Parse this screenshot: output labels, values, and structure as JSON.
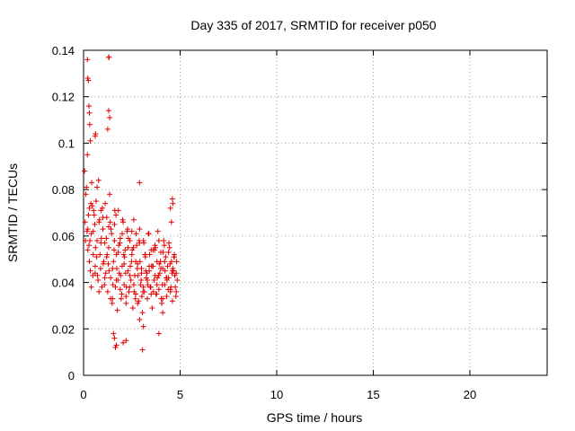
{
  "chart_data": {
    "type": "scatter",
    "title": "Day 335 of 2017, SRMTID for receiver p050",
    "xlabel": "GPS time / hours",
    "ylabel": "SRMTID / TECUs",
    "xlim": [
      0,
      24
    ],
    "ylim": [
      0,
      0.14
    ],
    "xticks": [
      0,
      5,
      10,
      15,
      20
    ],
    "xtick_labels": [
      "0",
      "5",
      "10",
      "15",
      "20"
    ],
    "yticks": [
      0,
      0.02,
      0.04,
      0.06,
      0.08,
      0.1,
      0.12,
      0.14
    ],
    "ytick_labels": [
      "0",
      "0.02",
      "0.04",
      "0.06",
      "0.08",
      "0.1",
      "0.12",
      "0.14"
    ],
    "grid": true,
    "marker": "+",
    "color": "#e00000",
    "series": [
      {
        "name": "SRMTID",
        "x": [
          0.08,
          0.12,
          0.2,
          0.22,
          0.3,
          0.35,
          0.4,
          0.42,
          0.5,
          0.55,
          0.6,
          0.65,
          0.7,
          0.75,
          0.8,
          0.85,
          0.9,
          0.95,
          1.0,
          1.05,
          1.1,
          1.15,
          1.2,
          1.25,
          1.3,
          1.35,
          1.4,
          1.45,
          1.5,
          1.55,
          1.6,
          1.65,
          1.7,
          1.75,
          1.8,
          1.85,
          1.9,
          1.95,
          2.0,
          2.05,
          2.1,
          2.15,
          2.2,
          2.25,
          2.3,
          2.35,
          2.4,
          2.45,
          2.5,
          2.55,
          2.6,
          2.65,
          2.7,
          2.75,
          2.8,
          2.85,
          2.9,
          2.95,
          3.0,
          3.05,
          3.1,
          3.15,
          3.2,
          3.25,
          3.3,
          3.35,
          3.4,
          3.45,
          3.5,
          3.55,
          3.6,
          3.65,
          3.7,
          3.75,
          3.8,
          3.85,
          3.9,
          3.95,
          4.0,
          4.05,
          4.1,
          4.15,
          4.2,
          4.25,
          4.3,
          4.35,
          4.4,
          4.45,
          4.5,
          4.55,
          4.6,
          4.65,
          4.7,
          4.75,
          4.8,
          4.85,
          0.1,
          0.15,
          0.25,
          0.3,
          0.4,
          0.45,
          0.5,
          0.6,
          0.7,
          0.8,
          0.9,
          1.0,
          1.1,
          1.2,
          1.3,
          1.4,
          1.5,
          1.6,
          1.7,
          1.8,
          1.9,
          2.0,
          2.1,
          2.2,
          2.3,
          2.4,
          2.5,
          2.6,
          2.7,
          2.8,
          2.9,
          3.0,
          3.1,
          3.2,
          3.3,
          3.4,
          3.5,
          3.6,
          3.7,
          3.8,
          3.9,
          4.0,
          4.1,
          4.2,
          4.3,
          4.4,
          4.5,
          4.6,
          4.7,
          4.8,
          0.05,
          0.18,
          0.28,
          0.38,
          0.48,
          0.58,
          0.68,
          0.78,
          0.88,
          0.98,
          1.08,
          1.18,
          1.28,
          1.38,
          1.48,
          1.58,
          1.68,
          1.78,
          1.88,
          1.98,
          2.08,
          2.18,
          2.28,
          2.38,
          2.48,
          2.58,
          2.68,
          2.78,
          2.88,
          2.98,
          3.08,
          3.18,
          3.28,
          3.38,
          3.48,
          3.58,
          3.68,
          3.78,
          3.88,
          3.98,
          4.08,
          4.18,
          4.28,
          4.38,
          4.48,
          4.58,
          4.68,
          4.78,
          0.22,
          0.33,
          0.52,
          0.62,
          0.72,
          0.82,
          0.92,
          1.02,
          1.12,
          1.22,
          1.32,
          1.42,
          1.52,
          1.62,
          1.72,
          1.82,
          1.92,
          2.02,
          2.12,
          2.22,
          2.32,
          2.42,
          2.52,
          2.62,
          2.72,
          2.82,
          2.92,
          3.02,
          3.12,
          3.22,
          3.32,
          3.42,
          3.52,
          3.62,
          3.72,
          3.82,
          3.92,
          4.02,
          4.12,
          4.22,
          4.32,
          4.42,
          4.52,
          4.62,
          4.72,
          4.82,
          1.3,
          1.32,
          0.2,
          0.22,
          0.25,
          0.28,
          0.3,
          0.32,
          0.35,
          0.6,
          0.62,
          1.3,
          1.35,
          1.25,
          2.9,
          3.05,
          3.1,
          2.2,
          1.6,
          1.65,
          1.7,
          1.55,
          2.05,
          2.9,
          3.9,
          4.1,
          4.6,
          4.62,
          4.5,
          4.55
        ],
        "y": [
          0.066,
          0.078,
          0.095,
          0.054,
          0.072,
          0.045,
          0.061,
          0.083,
          0.052,
          0.069,
          0.047,
          0.075,
          0.058,
          0.041,
          0.066,
          0.052,
          0.071,
          0.038,
          0.063,
          0.049,
          0.057,
          0.044,
          0.068,
          0.036,
          0.055,
          0.078,
          0.042,
          0.061,
          0.033,
          0.049,
          0.065,
          0.038,
          0.052,
          0.028,
          0.071,
          0.044,
          0.059,
          0.033,
          0.047,
          0.066,
          0.039,
          0.054,
          0.031,
          0.062,
          0.045,
          0.036,
          0.058,
          0.041,
          0.052,
          0.029,
          0.067,
          0.043,
          0.035,
          0.056,
          0.048,
          0.032,
          0.063,
          0.039,
          0.046,
          0.027,
          0.058,
          0.036,
          0.051,
          0.042,
          0.033,
          0.061,
          0.045,
          0.038,
          0.054,
          0.029,
          0.047,
          0.041,
          0.056,
          0.035,
          0.049,
          0.062,
          0.037,
          0.044,
          0.053,
          0.031,
          0.046,
          0.058,
          0.039,
          0.051,
          0.034,
          0.047,
          0.042,
          0.055,
          0.036,
          0.049,
          0.032,
          0.045,
          0.052,
          0.038,
          0.044,
          0.041,
          0.058,
          0.081,
          0.069,
          0.049,
          0.038,
          0.073,
          0.062,
          0.044,
          0.081,
          0.036,
          0.057,
          0.068,
          0.042,
          0.051,
          0.064,
          0.033,
          0.046,
          0.058,
          0.041,
          0.053,
          0.037,
          0.061,
          0.048,
          0.034,
          0.055,
          0.043,
          0.062,
          0.039,
          0.049,
          0.031,
          0.057,
          0.044,
          0.038,
          0.052,
          0.041,
          0.047,
          0.035,
          0.054,
          0.043,
          0.039,
          0.058,
          0.046,
          0.033,
          0.049,
          0.042,
          0.053,
          0.037,
          0.045,
          0.051,
          0.036,
          0.088,
          0.062,
          0.056,
          0.074,
          0.043,
          0.065,
          0.051,
          0.084,
          0.046,
          0.072,
          0.039,
          0.059,
          0.048,
          0.066,
          0.031,
          0.054,
          0.069,
          0.041,
          0.057,
          0.035,
          0.052,
          0.044,
          0.063,
          0.038,
          0.049,
          0.055,
          0.033,
          0.046,
          0.058,
          0.041,
          0.036,
          0.052,
          0.044,
          0.061,
          0.038,
          0.047,
          0.054,
          0.035,
          0.043,
          0.049,
          0.039,
          0.056,
          0.042,
          0.037,
          0.048,
          0.044,
          0.051,
          0.034,
          0.063,
          0.058,
          0.071,
          0.055,
          0.043,
          0.067,
          0.059,
          0.048,
          0.074,
          0.052,
          0.045,
          0.063,
          0.039,
          0.071,
          0.046,
          0.056,
          0.043,
          0.067,
          0.051,
          0.038,
          0.059,
          0.047,
          0.054,
          0.036,
          0.061,
          0.043,
          0.049,
          0.034,
          0.057,
          0.045,
          0.039,
          0.052,
          0.047,
          0.036,
          0.055,
          0.042,
          0.048,
          0.033,
          0.053,
          0.045,
          0.041,
          0.057,
          0.038,
          0.046,
          0.043,
          0.049,
          0.137,
          0.137,
          0.136,
          0.128,
          0.127,
          0.116,
          0.113,
          0.108,
          0.101,
          0.103,
          0.104,
          0.114,
          0.111,
          0.106,
          0.083,
          0.011,
          0.021,
          0.015,
          0.016,
          0.012,
          0.013,
          0.018,
          0.014,
          0.024,
          0.018,
          0.027,
          0.076,
          0.074,
          0.072,
          0.066
        ]
      }
    ]
  }
}
